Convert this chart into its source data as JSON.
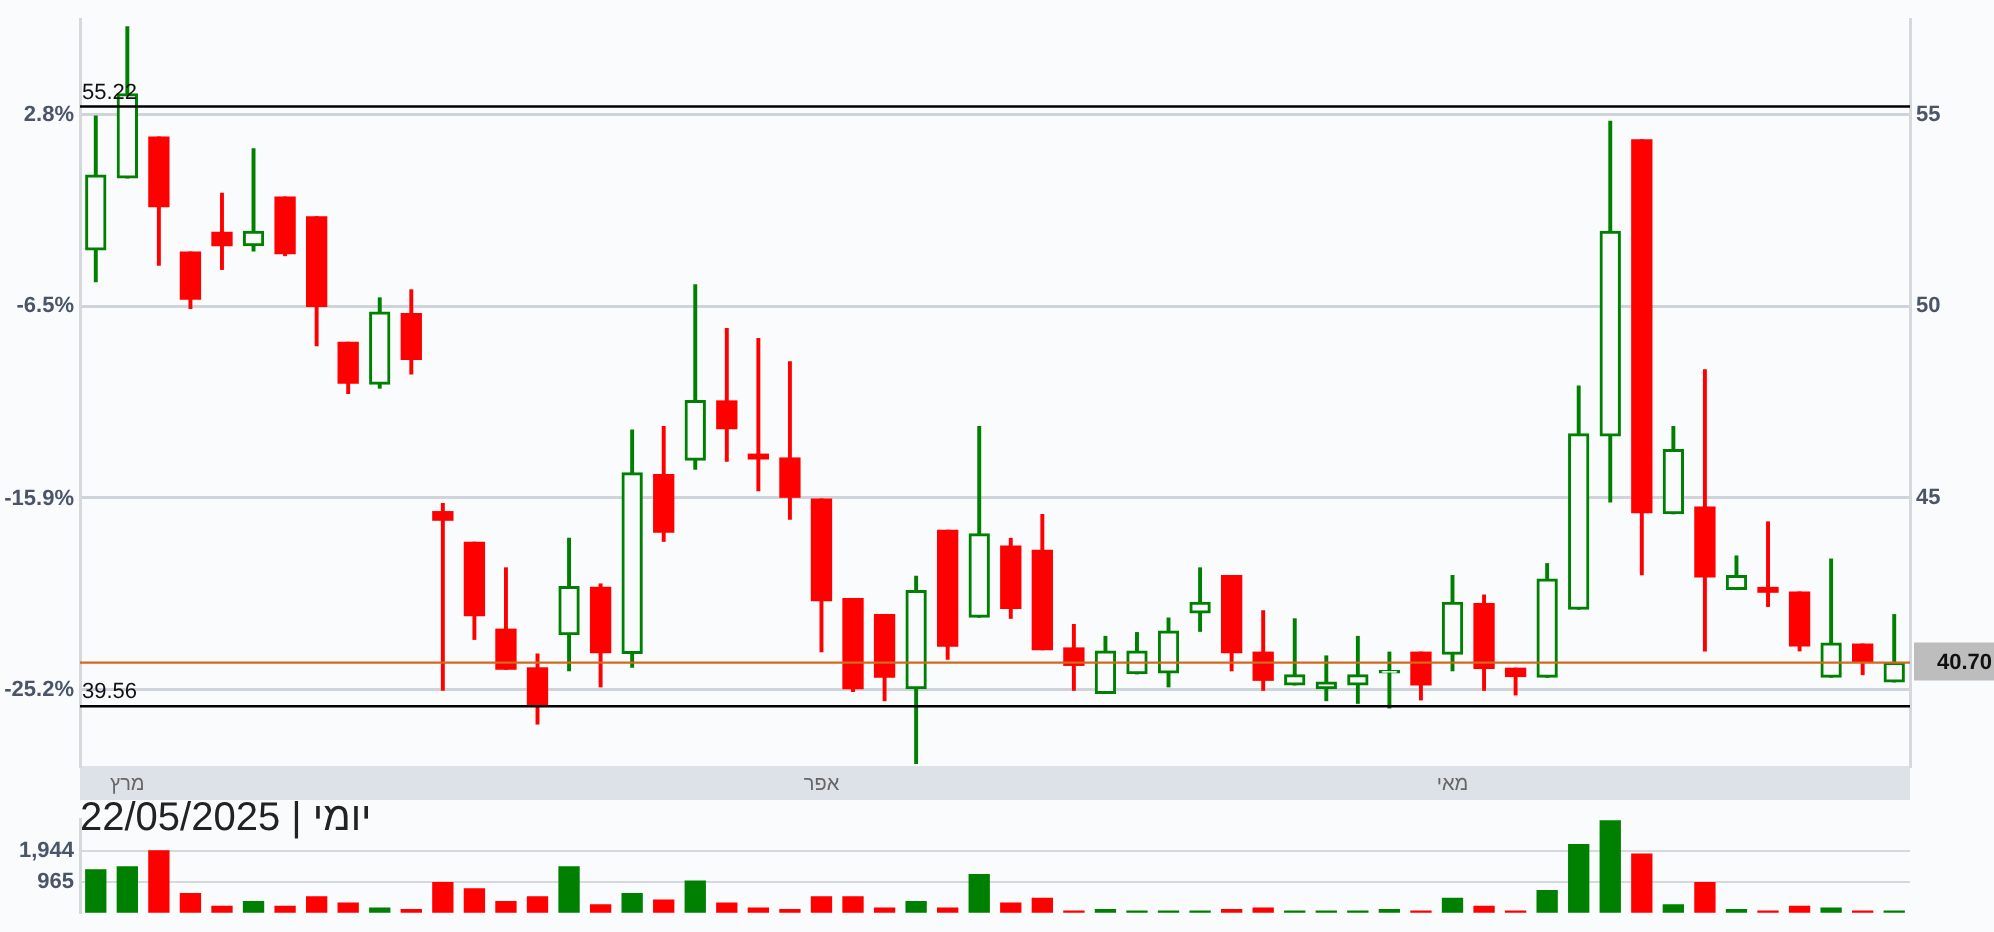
{
  "chart_data": [
    {
      "type": "candlestick",
      "categories": [
        null,
        "מרץ",
        null,
        null,
        null,
        null,
        null,
        null,
        null,
        null,
        null,
        null,
        null,
        null,
        null,
        null,
        null,
        null,
        null,
        null,
        null,
        null,
        null,
        "אפר",
        null,
        null,
        null,
        null,
        null,
        null,
        null,
        null,
        null,
        null,
        null,
        null,
        null,
        null,
        null,
        null,
        null,
        null,
        null,
        "מאי",
        null,
        null,
        null,
        null,
        null,
        null,
        null,
        null,
        null,
        null,
        null,
        null,
        null,
        null
      ],
      "ohlc": [
        [
          51.48,
          54.97,
          50.65,
          53.43
        ],
        [
          53.36,
          57.3,
          53.36,
          55.55
        ],
        [
          54.42,
          54.42,
          51.08,
          52.61
        ],
        [
          51.42,
          51.42,
          49.95,
          50.19
        ],
        [
          51.93,
          52.95,
          50.97,
          51.59
        ],
        [
          51.59,
          54.11,
          51.45,
          51.96
        ],
        [
          52.85,
          52.85,
          51.33,
          51.38
        ],
        [
          52.34,
          52.34,
          48.98,
          50.0
        ],
        [
          49.06,
          49.06,
          47.73,
          48.0
        ],
        [
          47.97,
          50.22,
          47.87,
          49.85
        ],
        [
          49.81,
          50.43,
          48.24,
          48.62
        ],
        [
          44.64,
          44.85,
          39.98,
          44.42
        ],
        [
          43.84,
          43.84,
          41.31,
          41.93
        ],
        [
          41.57,
          43.17,
          40.53,
          40.53
        ],
        [
          40.56,
          40.92,
          39.1,
          39.57
        ],
        [
          41.43,
          43.94,
          40.49,
          42.68
        ],
        [
          42.66,
          42.75,
          40.07,
          40.96
        ],
        [
          40.94,
          46.77,
          40.58,
          45.65
        ],
        [
          45.61,
          46.86,
          43.87,
          44.11
        ],
        [
          45.99,
          50.56,
          45.75,
          47.54
        ],
        [
          47.53,
          49.42,
          45.96,
          46.81
        ],
        [
          46.14,
          49.16,
          45.19,
          46.02
        ],
        [
          46.04,
          48.55,
          44.45,
          45.02
        ],
        [
          44.97,
          44.97,
          40.99,
          42.32
        ],
        [
          42.37,
          42.37,
          39.95,
          40.02
        ],
        [
          41.95,
          41.95,
          39.71,
          40.32
        ],
        [
          40.02,
          42.95,
          38.07,
          42.58
        ],
        [
          44.15,
          44.15,
          40.79,
          41.13
        ],
        [
          41.89,
          46.86,
          41.89,
          44.06
        ],
        [
          43.74,
          43.94,
          41.86,
          42.12
        ],
        [
          43.63,
          44.56,
          41.04,
          41.04
        ],
        [
          41.08,
          41.69,
          39.98,
          40.63
        ],
        [
          39.9,
          41.38,
          39.9,
          41.0
        ],
        [
          40.41,
          41.48,
          40.41,
          41.0
        ],
        [
          40.43,
          41.86,
          40.07,
          41.52
        ],
        [
          42.0,
          43.17,
          41.52,
          42.27
        ],
        [
          42.97,
          42.97,
          40.49,
          40.96
        ],
        [
          40.97,
          42.05,
          39.98,
          40.24
        ],
        [
          40.12,
          41.84,
          40.12,
          40.38
        ],
        [
          40.02,
          40.87,
          39.71,
          40.19
        ],
        [
          40.12,
          41.38,
          39.64,
          40.38
        ],
        [
          40.43,
          40.97,
          39.52,
          40.49
        ],
        [
          40.97,
          40.97,
          39.73,
          40.12
        ],
        [
          40.92,
          42.97,
          40.49,
          42.27
        ],
        [
          42.24,
          42.46,
          39.98,
          40.55
        ],
        [
          40.55,
          40.55,
          39.86,
          40.34
        ],
        [
          40.32,
          43.28,
          40.32,
          42.88
        ],
        [
          42.1,
          47.92,
          42.1,
          46.67
        ],
        [
          46.62,
          54.83,
          44.9,
          51.96
        ],
        [
          54.35,
          54.35,
          43.0,
          44.62
        ],
        [
          44.59,
          46.86,
          44.59,
          46.26
        ],
        [
          44.76,
          48.34,
          41.01,
          42.94
        ],
        [
          42.61,
          43.48,
          42.61,
          42.97
        ],
        [
          42.66,
          44.37,
          42.17,
          42.54
        ],
        [
          42.54,
          42.54,
          41.01,
          41.14
        ],
        [
          40.32,
          43.4,
          40.32,
          41.21
        ],
        [
          41.18,
          41.18,
          40.39,
          40.72
        ],
        [
          40.2,
          41.95,
          40.2,
          40.7
        ]
      ],
      "colors": [
        "#008000",
        "#008000",
        "#ff0000",
        "#ff0000",
        "#ff0000",
        "#008000",
        "#ff0000",
        "#ff0000",
        "#ff0000",
        "#008000",
        "#ff0000",
        "#ff0000",
        "#ff0000",
        "#ff0000",
        "#ff0000",
        "#008000",
        "#ff0000",
        "#008000",
        "#ff0000",
        "#008000",
        "#ff0000",
        "#ff0000",
        "#ff0000",
        "#ff0000",
        "#ff0000",
        "#ff0000",
        "#008000",
        "#ff0000",
        "#008000",
        "#ff0000",
        "#ff0000",
        "#ff0000",
        "#008000",
        "#008000",
        "#008000",
        "#008000",
        "#ff0000",
        "#ff0000",
        "#008000",
        "#008000",
        "#008000",
        "#008000",
        "#ff0000",
        "#008000",
        "#ff0000",
        "#ff0000",
        "#008000",
        "#008000",
        "#008000",
        "#ff0000",
        "#008000",
        "#ff0000",
        "#008000",
        "#ff0000",
        "#ff0000",
        "#008000",
        "#ff0000",
        "#008000"
      ],
      "ylim": [
        38,
        57.5
      ],
      "yticks": [
        {
          "value": 40,
          "label": null
        },
        45,
        50,
        55
      ],
      "y2lim": [
        -28.93,
        7.47
      ],
      "y2ticks": [
        {
          "value": -25.2,
          "label": "-25.2%"
        },
        {
          "value": -15.9,
          "label": "-15.9%"
        },
        {
          "value": -6.5,
          "label": "-6.5%"
        },
        {
          "value": 2.8,
          "label": "2.8%"
        }
      ],
      "ref_lines": [
        {
          "axis": "y",
          "value": 55.22,
          "label": "55.22",
          "color": "#000000"
        },
        {
          "axis": "y",
          "value": 39.56,
          "label": "39.56",
          "color": "#000000"
        },
        {
          "axis": "y",
          "value": 40.7,
          "label": "40.70",
          "color": "#d2691e"
        }
      ],
      "grid": "y"
    },
    {
      "type": "bar",
      "title": "יומי | 22/05/2025",
      "categories": [
        null,
        null,
        null,
        null,
        null,
        null,
        null,
        null,
        null,
        null,
        null,
        null,
        null,
        null,
        null,
        null,
        null,
        null,
        null,
        null,
        null,
        null,
        null,
        null,
        null,
        null,
        null,
        null,
        null,
        null,
        null,
        null,
        null,
        null,
        null,
        null,
        null,
        null,
        null,
        null,
        null,
        null,
        null,
        null,
        null,
        null,
        null,
        null,
        null,
        null,
        null,
        null,
        null,
        null,
        null,
        null,
        null,
        null
      ],
      "values": [
        1350,
        1450,
        1950,
        600,
        200,
        350,
        200,
        500,
        300,
        150,
        100,
        950,
        750,
        350,
        500,
        1450,
        250,
        600,
        400,
        1000,
        300,
        150,
        100,
        500,
        500,
        150,
        350,
        150,
        1200,
        300,
        450,
        50,
        100,
        50,
        50,
        50,
        100,
        150,
        50,
        50,
        50,
        100,
        50,
        450,
        200,
        50,
        700,
        2150,
        2900,
        1850,
        250,
        950,
        100,
        50,
        200,
        150,
        50,
        50
      ],
      "colors": [
        "#008000",
        "#008000",
        "#ff0000",
        "#ff0000",
        "#ff0000",
        "#008000",
        "#ff0000",
        "#ff0000",
        "#ff0000",
        "#008000",
        "#ff0000",
        "#ff0000",
        "#ff0000",
        "#ff0000",
        "#ff0000",
        "#008000",
        "#ff0000",
        "#008000",
        "#ff0000",
        "#008000",
        "#ff0000",
        "#ff0000",
        "#ff0000",
        "#ff0000",
        "#ff0000",
        "#ff0000",
        "#008000",
        "#ff0000",
        "#008000",
        "#ff0000",
        "#ff0000",
        "#ff0000",
        "#008000",
        "#008000",
        "#008000",
        "#008000",
        "#ff0000",
        "#ff0000",
        "#008000",
        "#008000",
        "#008000",
        "#008000",
        "#ff0000",
        "#008000",
        "#ff0000",
        "#ff0000",
        "#008000",
        "#008000",
        "#008000",
        "#ff0000",
        "#008000",
        "#ff0000",
        "#008000",
        "#ff0000",
        "#ff0000",
        "#008000",
        "#ff0000",
        "#008000"
      ],
      "ylim": [
        0,
        2950
      ],
      "yticks": [
        {
          "value": 965,
          "label": "965"
        },
        {
          "value": 1944,
          "label": "1,944"
        }
      ],
      "grid": "y"
    }
  ]
}
